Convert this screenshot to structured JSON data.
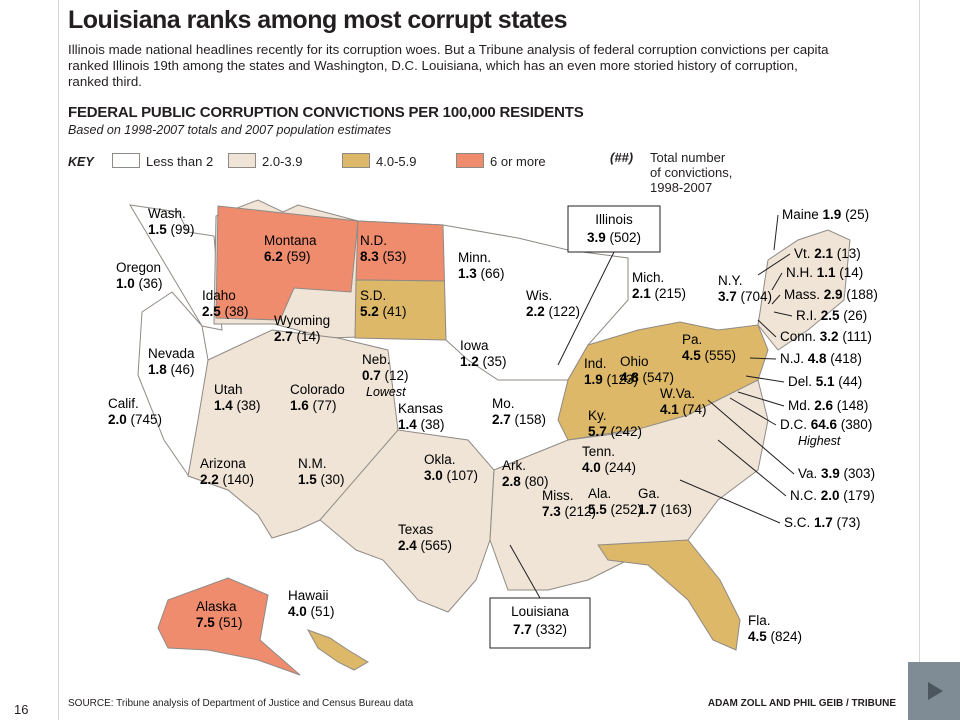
{
  "slide_number": "16",
  "title": "Louisiana ranks among most corrupt states",
  "deck": "Illinois made national headlines recently for its corruption woes. But a Tribune analysis of federal corruption convictions per capita ranked Illinois 19th among the states and Washington, D.C. Louisiana, which has an even more storied history of corruption, ranked third.",
  "subhead": "FEDERAL PUBLIC CORRUPTION CONVICTIONS PER 100,000 RESIDENTS",
  "subnote": "Based on 1998-2007 totals and 2007 population estimates",
  "key": {
    "label": "KEY",
    "ranges": [
      {
        "text": "Less than 2",
        "color": "#ffffff"
      },
      {
        "text": "2.0-3.9",
        "color": "#efe4d6"
      },
      {
        "text": "4.0-5.9",
        "color": "#dcb868"
      },
      {
        "text": "6 or more",
        "color": "#f08c6e"
      }
    ],
    "total_symbol": "(##)",
    "total_text": [
      "Total number",
      "of convictions,",
      "1998-2007"
    ]
  },
  "colors": {
    "lt2": "#ffffff",
    "2to4": "#efe4d6",
    "4to6": "#dcb868",
    "6plus": "#f08c6e",
    "border": "#8f8a85"
  },
  "states": [
    {
      "name": "Wash.",
      "rate": "1.5",
      "total": "(99)"
    },
    {
      "name": "Oregon",
      "rate": "1.0",
      "total": "(36)"
    },
    {
      "name": "Montana",
      "rate": "6.2",
      "total": "(59)"
    },
    {
      "name": "N.D.",
      "rate": "8.3",
      "total": "(53)"
    },
    {
      "name": "Minn.",
      "rate": "1.3",
      "total": "(66)"
    },
    {
      "name": "Idaho",
      "rate": "2.5",
      "total": "(38)"
    },
    {
      "name": "Wyoming",
      "rate": "2.7",
      "total": "(14)"
    },
    {
      "name": "S.D.",
      "rate": "5.2",
      "total": "(41)"
    },
    {
      "name": "Wis.",
      "rate": "2.2",
      "total": "(122)"
    },
    {
      "name": "Mich.",
      "rate": "2.1",
      "total": "(215)"
    },
    {
      "name": "Iowa",
      "rate": "1.2",
      "total": "(35)"
    },
    {
      "name": "Neb.",
      "rate": "0.7",
      "total": "(12)",
      "note": "Lowest"
    },
    {
      "name": "Nevada",
      "rate": "1.8",
      "total": "(46)"
    },
    {
      "name": "Utah",
      "rate": "1.4",
      "total": "(38)"
    },
    {
      "name": "Colorado",
      "rate": "1.6",
      "total": "(77)"
    },
    {
      "name": "Kansas",
      "rate": "1.4",
      "total": "(38)"
    },
    {
      "name": "Calif.",
      "rate": "2.0",
      "total": "(745)"
    },
    {
      "name": "Mo.",
      "rate": "2.7",
      "total": "(158)"
    },
    {
      "name": "Ind.",
      "rate": "1.9",
      "total": "(123)"
    },
    {
      "name": "Ohio",
      "rate": "4.8",
      "total": "(547)"
    },
    {
      "name": "W.Va.",
      "rate": "4.1",
      "total": "(74)"
    },
    {
      "name": "Pa.",
      "rate": "4.5",
      "total": "(555)"
    },
    {
      "name": "N.Y.",
      "rate": "3.7",
      "total": "(704)"
    },
    {
      "name": "Arizona",
      "rate": "2.2",
      "total": "(140)"
    },
    {
      "name": "N.M.",
      "rate": "1.5",
      "total": "(30)"
    },
    {
      "name": "Okla.",
      "rate": "3.0",
      "total": "(107)"
    },
    {
      "name": "Ark.",
      "rate": "2.8",
      "total": "(80)"
    },
    {
      "name": "Ky.",
      "rate": "5.7",
      "total": "(242)"
    },
    {
      "name": "Tenn.",
      "rate": "4.0",
      "total": "(244)"
    },
    {
      "name": "Miss.",
      "rate": "7.3",
      "total": "(212)"
    },
    {
      "name": "Ala.",
      "rate": "5.5",
      "total": "(252)"
    },
    {
      "name": "Ga.",
      "rate": "1.7",
      "total": "(163)"
    },
    {
      "name": "Texas",
      "rate": "2.4",
      "total": "(565)"
    },
    {
      "name": "Alaska",
      "rate": "7.5",
      "total": "(51)"
    },
    {
      "name": "Hawaii",
      "rate": "4.0",
      "total": "(51)"
    },
    {
      "name": "Fla.",
      "rate": "4.5",
      "total": "(824)"
    }
  ],
  "boxed": [
    {
      "name": "Illinois",
      "rate": "3.9",
      "total": "(502)"
    },
    {
      "name": "Louisiana",
      "rate": "7.7",
      "total": "(332)"
    }
  ],
  "callouts": [
    {
      "name": "Maine",
      "rate": "1.9",
      "total": "(25)"
    },
    {
      "name": "Vt.",
      "rate": "2.1",
      "total": "(13)"
    },
    {
      "name": "N.H.",
      "rate": "1.1",
      "total": "(14)"
    },
    {
      "name": "Mass.",
      "rate": "2.9",
      "total": "(188)"
    },
    {
      "name": "R.I.",
      "rate": "2.5",
      "total": "(26)"
    },
    {
      "name": "Conn.",
      "rate": "3.2",
      "total": "(111)"
    },
    {
      "name": "N.J.",
      "rate": "4.8",
      "total": "(418)"
    },
    {
      "name": "Del.",
      "rate": "5.1",
      "total": "(44)"
    },
    {
      "name": "Md.",
      "rate": "2.6",
      "total": "(148)"
    },
    {
      "name": "D.C.",
      "rate": "64.6",
      "total": "(380)",
      "note": "Highest"
    },
    {
      "name": "Va.",
      "rate": "3.9",
      "total": "(303)"
    },
    {
      "name": "N.C.",
      "rate": "2.0",
      "total": "(179)"
    },
    {
      "name": "S.C.",
      "rate": "1.7",
      "total": "(73)"
    }
  ],
  "source": "SOURCE: Tribune analysis of Department of Justice and Census Bureau data",
  "credit": "ADAM ZOLL AND PHIL GEIB / TRIBUNE"
}
